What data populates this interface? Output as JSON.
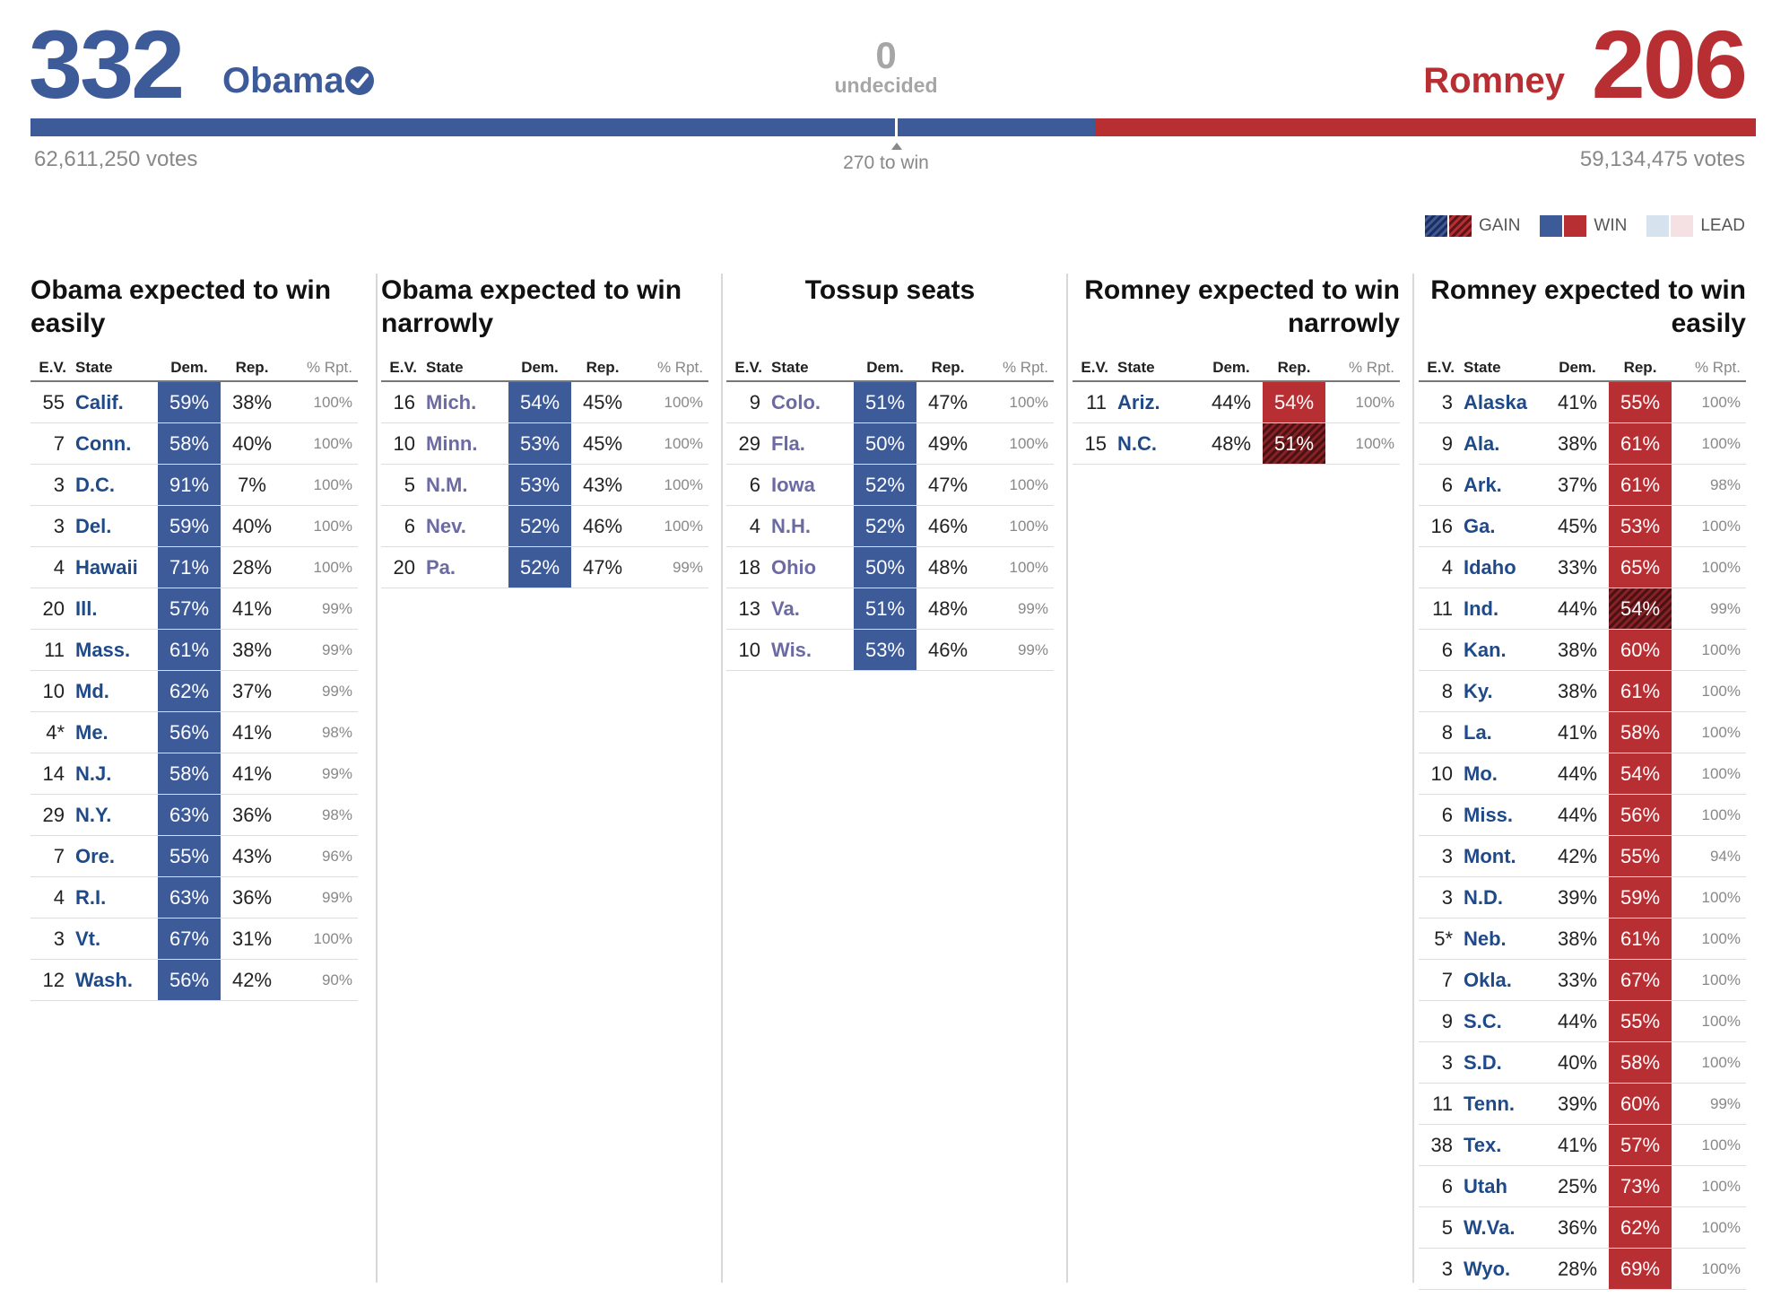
{
  "header": {
    "obama": {
      "ev": "332",
      "name": "Obama",
      "votes": "62,611,250 votes",
      "ev_share": 0.6171
    },
    "romney": {
      "ev": "206",
      "name": "Romney",
      "votes": "59,134,475 votes"
    },
    "undecided": {
      "count": "0",
      "label": "undecided"
    },
    "threshold_label": "270 to win",
    "threshold_share": 0.5019
  },
  "legend": {
    "gain": "GAIN",
    "win": "WIN",
    "lead": "LEAD"
  },
  "colors": {
    "dem": "#3d5a99",
    "rep": "#b82f33",
    "dem_lead": "#d6e3ee",
    "rep_lead": "#f5e1e3"
  },
  "table_headers": {
    "ev": "E.V.",
    "state": "State",
    "dem": "Dem.",
    "rep": "Rep.",
    "pct": "% Rpt."
  },
  "columns": [
    {
      "title": "Obama expected to win easily",
      "align": "left",
      "tossup": false,
      "rows": [
        {
          "ev": "55",
          "state": "Calif.",
          "dem": "59%",
          "rep": "38%",
          "pct": "100%",
          "winner": "d",
          "gain": false
        },
        {
          "ev": "7",
          "state": "Conn.",
          "dem": "58%",
          "rep": "40%",
          "pct": "100%",
          "winner": "d",
          "gain": false
        },
        {
          "ev": "3",
          "state": "D.C.",
          "dem": "91%",
          "rep": "7%",
          "pct": "100%",
          "winner": "d",
          "gain": false
        },
        {
          "ev": "3",
          "state": "Del.",
          "dem": "59%",
          "rep": "40%",
          "pct": "100%",
          "winner": "d",
          "gain": false
        },
        {
          "ev": "4",
          "state": "Hawaii",
          "dem": "71%",
          "rep": "28%",
          "pct": "100%",
          "winner": "d",
          "gain": false
        },
        {
          "ev": "20",
          "state": "Ill.",
          "dem": "57%",
          "rep": "41%",
          "pct": "99%",
          "winner": "d",
          "gain": false
        },
        {
          "ev": "11",
          "state": "Mass.",
          "dem": "61%",
          "rep": "38%",
          "pct": "99%",
          "winner": "d",
          "gain": false
        },
        {
          "ev": "10",
          "state": "Md.",
          "dem": "62%",
          "rep": "37%",
          "pct": "99%",
          "winner": "d",
          "gain": false
        },
        {
          "ev": "4*",
          "state": "Me.",
          "dem": "56%",
          "rep": "41%",
          "pct": "98%",
          "winner": "d",
          "gain": false
        },
        {
          "ev": "14",
          "state": "N.J.",
          "dem": "58%",
          "rep": "41%",
          "pct": "99%",
          "winner": "d",
          "gain": false
        },
        {
          "ev": "29",
          "state": "N.Y.",
          "dem": "63%",
          "rep": "36%",
          "pct": "98%",
          "winner": "d",
          "gain": false
        },
        {
          "ev": "7",
          "state": "Ore.",
          "dem": "55%",
          "rep": "43%",
          "pct": "96%",
          "winner": "d",
          "gain": false
        },
        {
          "ev": "4",
          "state": "R.I.",
          "dem": "63%",
          "rep": "36%",
          "pct": "99%",
          "winner": "d",
          "gain": false
        },
        {
          "ev": "3",
          "state": "Vt.",
          "dem": "67%",
          "rep": "31%",
          "pct": "100%",
          "winner": "d",
          "gain": false
        },
        {
          "ev": "12",
          "state": "Wash.",
          "dem": "56%",
          "rep": "42%",
          "pct": "90%",
          "winner": "d",
          "gain": false
        }
      ]
    },
    {
      "title": "Obama expected to win narrowly",
      "align": "left",
      "tossup": true,
      "rows": [
        {
          "ev": "16",
          "state": "Mich.",
          "dem": "54%",
          "rep": "45%",
          "pct": "100%",
          "winner": "d",
          "gain": false
        },
        {
          "ev": "10",
          "state": "Minn.",
          "dem": "53%",
          "rep": "45%",
          "pct": "100%",
          "winner": "d",
          "gain": false
        },
        {
          "ev": "5",
          "state": "N.M.",
          "dem": "53%",
          "rep": "43%",
          "pct": "100%",
          "winner": "d",
          "gain": false
        },
        {
          "ev": "6",
          "state": "Nev.",
          "dem": "52%",
          "rep": "46%",
          "pct": "100%",
          "winner": "d",
          "gain": false
        },
        {
          "ev": "20",
          "state": "Pa.",
          "dem": "52%",
          "rep": "47%",
          "pct": "99%",
          "winner": "d",
          "gain": false
        }
      ]
    },
    {
      "title": "Tossup seats",
      "align": "center",
      "tossup": true,
      "rows": [
        {
          "ev": "9",
          "state": "Colo.",
          "dem": "51%",
          "rep": "47%",
          "pct": "100%",
          "winner": "d",
          "gain": false
        },
        {
          "ev": "29",
          "state": "Fla.",
          "dem": "50%",
          "rep": "49%",
          "pct": "100%",
          "winner": "d",
          "gain": false
        },
        {
          "ev": "6",
          "state": "Iowa",
          "dem": "52%",
          "rep": "47%",
          "pct": "100%",
          "winner": "d",
          "gain": false
        },
        {
          "ev": "4",
          "state": "N.H.",
          "dem": "52%",
          "rep": "46%",
          "pct": "100%",
          "winner": "d",
          "gain": false
        },
        {
          "ev": "18",
          "state": "Ohio",
          "dem": "50%",
          "rep": "48%",
          "pct": "100%",
          "winner": "d",
          "gain": false
        },
        {
          "ev": "13",
          "state": "Va.",
          "dem": "51%",
          "rep": "48%",
          "pct": "99%",
          "winner": "d",
          "gain": false
        },
        {
          "ev": "10",
          "state": "Wis.",
          "dem": "53%",
          "rep": "46%",
          "pct": "99%",
          "winner": "d",
          "gain": false
        }
      ]
    },
    {
      "title": "Romney expected to win narrowly",
      "align": "right",
      "tossup": false,
      "rows": [
        {
          "ev": "11",
          "state": "Ariz.",
          "dem": "44%",
          "rep": "54%",
          "pct": "100%",
          "winner": "r",
          "gain": false
        },
        {
          "ev": "15",
          "state": "N.C.",
          "dem": "48%",
          "rep": "51%",
          "pct": "100%",
          "winner": "r",
          "gain": true
        }
      ]
    },
    {
      "title": "Romney expected to win easily",
      "align": "right",
      "tossup": false,
      "rows": [
        {
          "ev": "3",
          "state": "Alaska",
          "dem": "41%",
          "rep": "55%",
          "pct": "100%",
          "winner": "r",
          "gain": false
        },
        {
          "ev": "9",
          "state": "Ala.",
          "dem": "38%",
          "rep": "61%",
          "pct": "100%",
          "winner": "r",
          "gain": false
        },
        {
          "ev": "6",
          "state": "Ark.",
          "dem": "37%",
          "rep": "61%",
          "pct": "98%",
          "winner": "r",
          "gain": false
        },
        {
          "ev": "16",
          "state": "Ga.",
          "dem": "45%",
          "rep": "53%",
          "pct": "100%",
          "winner": "r",
          "gain": false
        },
        {
          "ev": "4",
          "state": "Idaho",
          "dem": "33%",
          "rep": "65%",
          "pct": "100%",
          "winner": "r",
          "gain": false
        },
        {
          "ev": "11",
          "state": "Ind.",
          "dem": "44%",
          "rep": "54%",
          "pct": "99%",
          "winner": "r",
          "gain": true
        },
        {
          "ev": "6",
          "state": "Kan.",
          "dem": "38%",
          "rep": "60%",
          "pct": "100%",
          "winner": "r",
          "gain": false
        },
        {
          "ev": "8",
          "state": "Ky.",
          "dem": "38%",
          "rep": "61%",
          "pct": "100%",
          "winner": "r",
          "gain": false
        },
        {
          "ev": "8",
          "state": "La.",
          "dem": "41%",
          "rep": "58%",
          "pct": "100%",
          "winner": "r",
          "gain": false
        },
        {
          "ev": "10",
          "state": "Mo.",
          "dem": "44%",
          "rep": "54%",
          "pct": "100%",
          "winner": "r",
          "gain": false
        },
        {
          "ev": "6",
          "state": "Miss.",
          "dem": "44%",
          "rep": "56%",
          "pct": "100%",
          "winner": "r",
          "gain": false
        },
        {
          "ev": "3",
          "state": "Mont.",
          "dem": "42%",
          "rep": "55%",
          "pct": "94%",
          "winner": "r",
          "gain": false
        },
        {
          "ev": "3",
          "state": "N.D.",
          "dem": "39%",
          "rep": "59%",
          "pct": "100%",
          "winner": "r",
          "gain": false
        },
        {
          "ev": "5*",
          "state": "Neb.",
          "dem": "38%",
          "rep": "61%",
          "pct": "100%",
          "winner": "r",
          "gain": false
        },
        {
          "ev": "7",
          "state": "Okla.",
          "dem": "33%",
          "rep": "67%",
          "pct": "100%",
          "winner": "r",
          "gain": false
        },
        {
          "ev": "9",
          "state": "S.C.",
          "dem": "44%",
          "rep": "55%",
          "pct": "100%",
          "winner": "r",
          "gain": false
        },
        {
          "ev": "3",
          "state": "S.D.",
          "dem": "40%",
          "rep": "58%",
          "pct": "100%",
          "winner": "r",
          "gain": false
        },
        {
          "ev": "11",
          "state": "Tenn.",
          "dem": "39%",
          "rep": "60%",
          "pct": "99%",
          "winner": "r",
          "gain": false
        },
        {
          "ev": "38",
          "state": "Tex.",
          "dem": "41%",
          "rep": "57%",
          "pct": "100%",
          "winner": "r",
          "gain": false
        },
        {
          "ev": "6",
          "state": "Utah",
          "dem": "25%",
          "rep": "73%",
          "pct": "100%",
          "winner": "r",
          "gain": false
        },
        {
          "ev": "5",
          "state": "W.Va.",
          "dem": "36%",
          "rep": "62%",
          "pct": "100%",
          "winner": "r",
          "gain": false
        },
        {
          "ev": "3",
          "state": "Wyo.",
          "dem": "28%",
          "rep": "69%",
          "pct": "100%",
          "winner": "r",
          "gain": false
        }
      ]
    }
  ]
}
